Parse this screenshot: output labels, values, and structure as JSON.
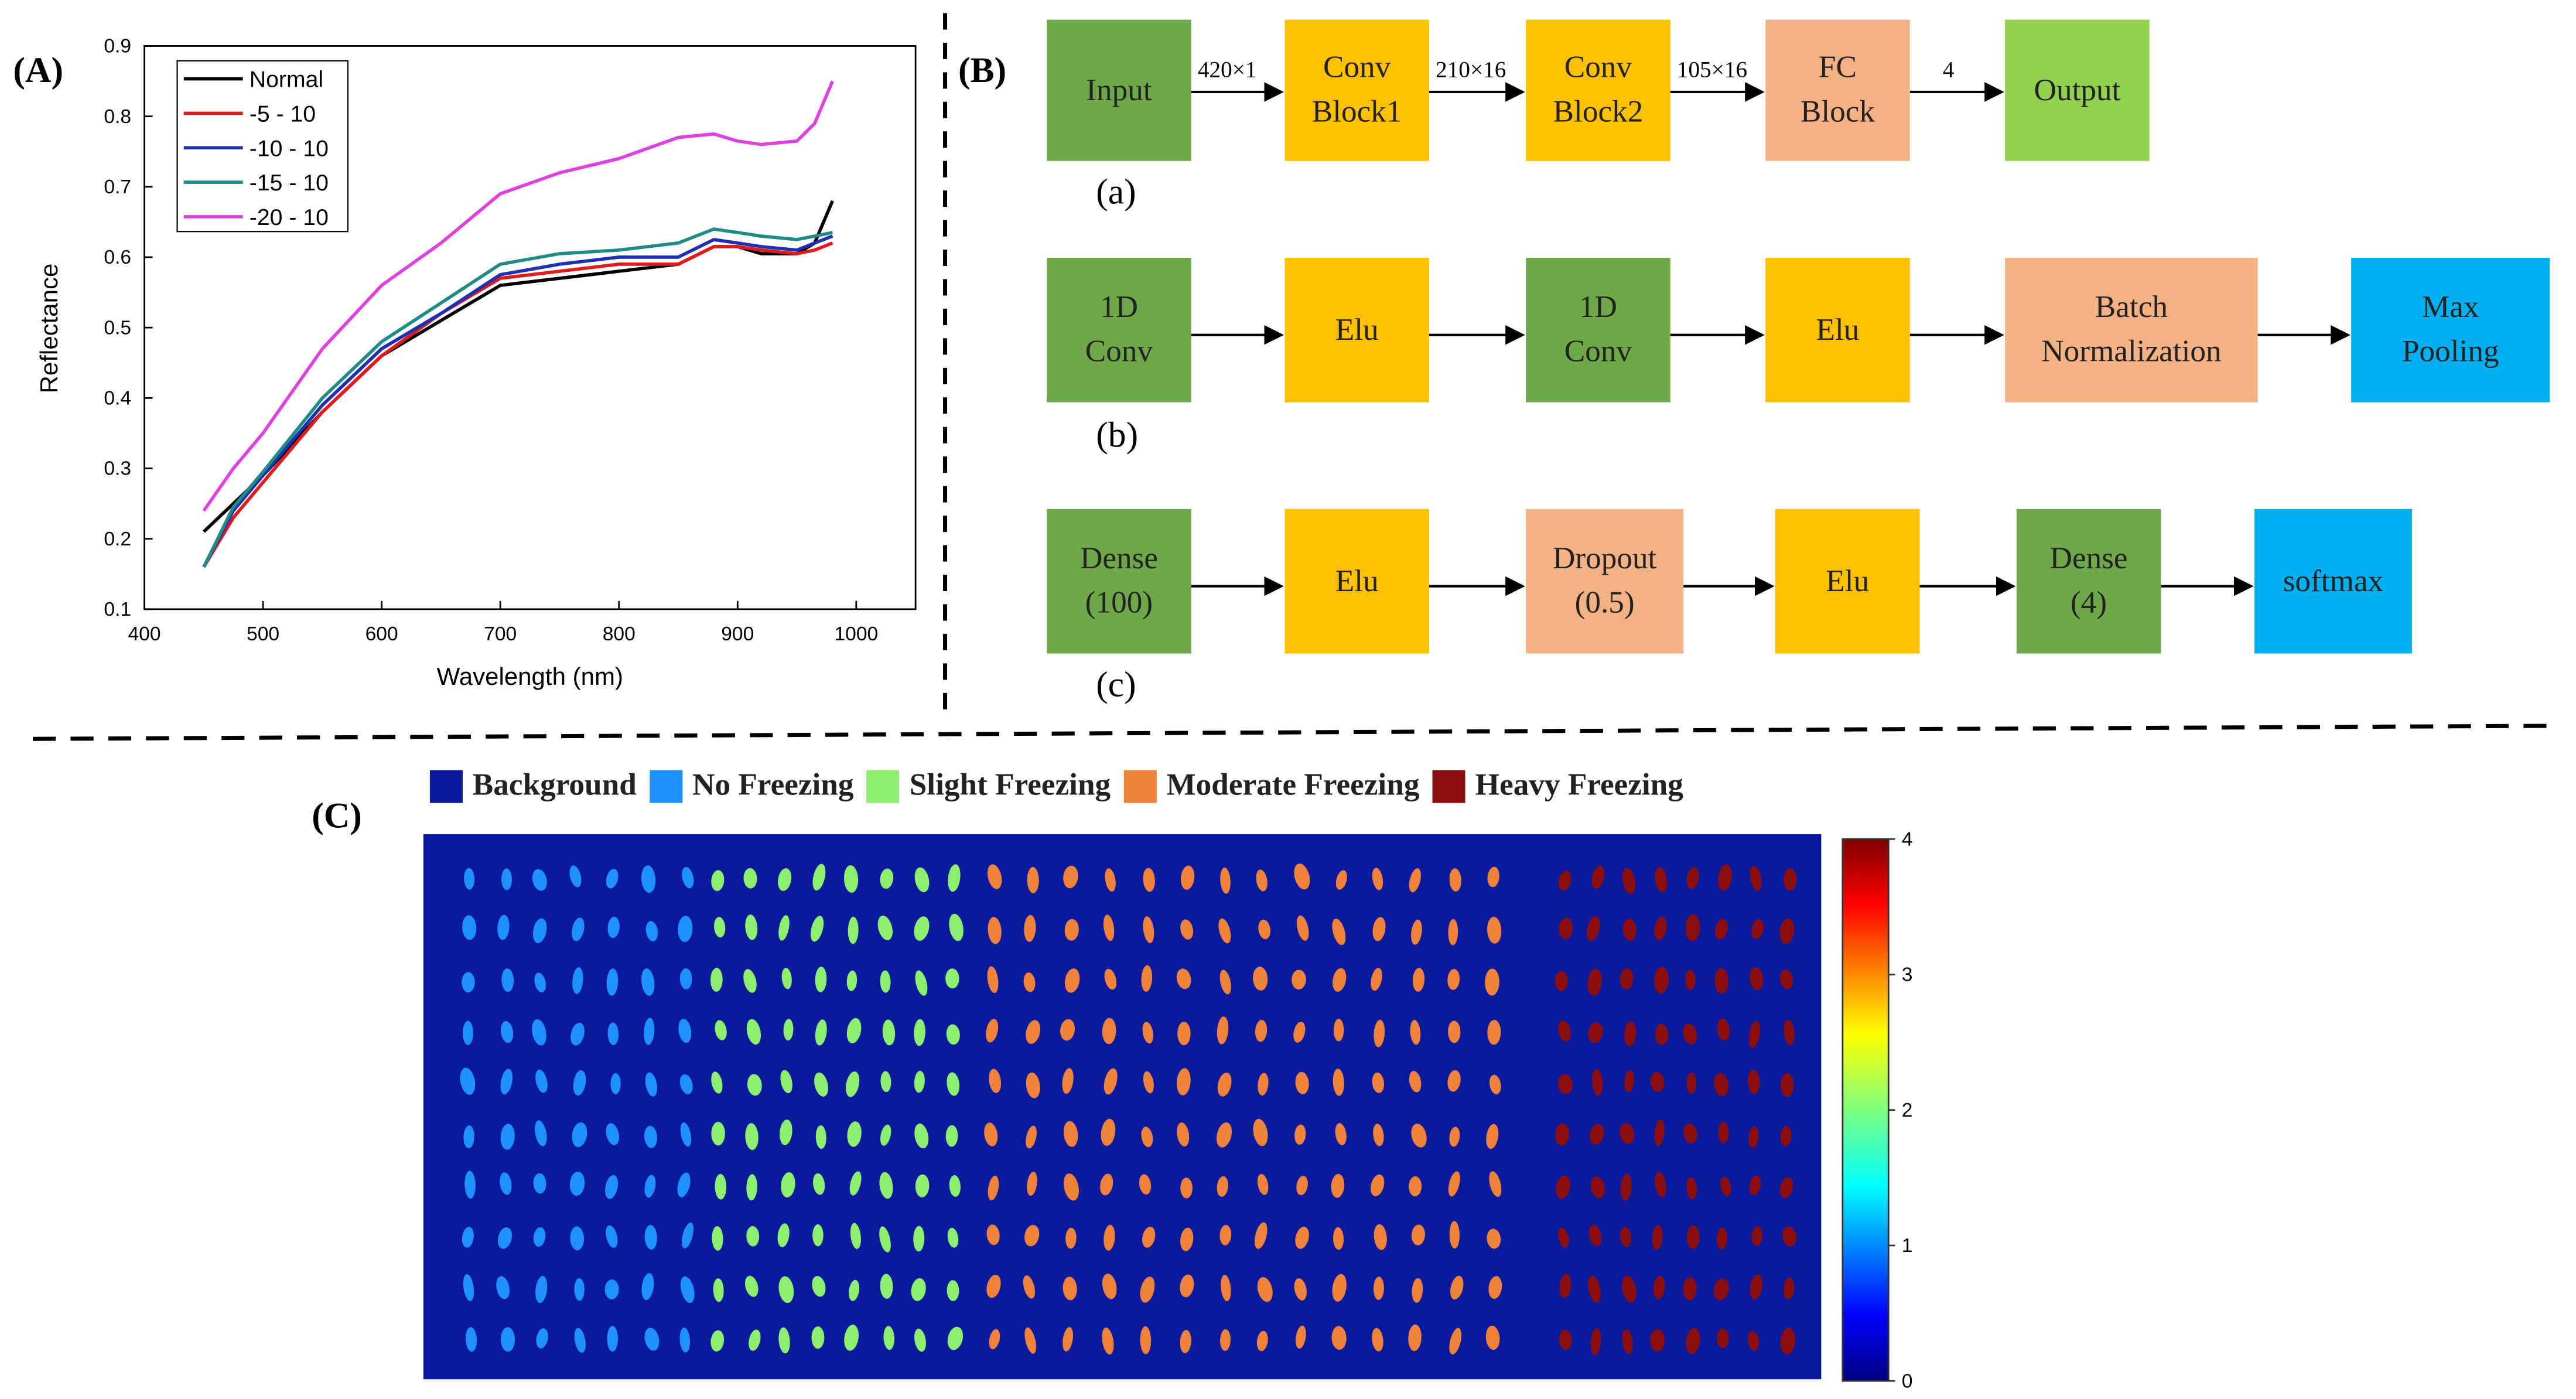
{
  "panels": {
    "a_label": "(A)",
    "b_label": "(B)",
    "c_label": "(C)"
  },
  "chart_data": {
    "type": "line",
    "title": "",
    "xlabel": "Wavelength (nm)",
    "ylabel": "Reflectance",
    "xlim": [
      400,
      1050
    ],
    "ylim": [
      0.1,
      0.9
    ],
    "xticks": [
      400,
      500,
      600,
      700,
      800,
      900,
      1000
    ],
    "yticks": [
      0.1,
      0.2,
      0.3,
      0.4,
      0.5,
      0.6,
      0.7,
      0.8,
      0.9
    ],
    "x": [
      450,
      475,
      500,
      550,
      600,
      650,
      700,
      750,
      800,
      850,
      880,
      900,
      920,
      950,
      965,
      980
    ],
    "series": [
      {
        "name": "Normal",
        "color": "#000000",
        "values": [
          0.21,
          0.25,
          0.29,
          0.38,
          0.46,
          0.51,
          0.56,
          0.57,
          0.58,
          0.59,
          0.615,
          0.615,
          0.605,
          0.605,
          0.62,
          0.68
        ]
      },
      {
        "name": "-5 - 10",
        "color": "#e31a1c",
        "values": [
          0.16,
          0.23,
          0.28,
          0.38,
          0.46,
          0.52,
          0.57,
          0.58,
          0.59,
          0.59,
          0.615,
          0.615,
          0.61,
          0.605,
          0.61,
          0.62
        ]
      },
      {
        "name": "-10 - 10",
        "color": "#1f2fb4",
        "values": [
          0.16,
          0.24,
          0.29,
          0.39,
          0.47,
          0.52,
          0.575,
          0.59,
          0.6,
          0.6,
          0.625,
          0.62,
          0.615,
          0.61,
          0.62,
          0.63
        ]
      },
      {
        "name": "-15 - 10",
        "color": "#1f8a86",
        "values": [
          0.16,
          0.245,
          0.295,
          0.4,
          0.48,
          0.535,
          0.59,
          0.605,
          0.61,
          0.62,
          0.64,
          0.635,
          0.63,
          0.625,
          0.63,
          0.635
        ]
      },
      {
        "name": "-20 - 10",
        "color": "#e040e0",
        "values": [
          0.24,
          0.3,
          0.35,
          0.47,
          0.56,
          0.62,
          0.69,
          0.72,
          0.74,
          0.77,
          0.775,
          0.765,
          0.76,
          0.765,
          0.79,
          0.85
        ]
      }
    ],
    "legend": "top-left"
  },
  "diagram_a": {
    "boxes": [
      "Input",
      "Conv\nBlock1",
      "Conv\nBlock2",
      "FC\nBlock",
      "Output"
    ],
    "arrows": [
      "420×1",
      "210×16",
      "105×16",
      "4"
    ],
    "sublabel": "(a)"
  },
  "diagram_b": {
    "boxes": [
      "1D\nConv",
      "Elu",
      "1D\nConv",
      "Elu",
      "Batch\nNormalization",
      "Max\nPooling"
    ],
    "sublabel": "(b)"
  },
  "diagram_c": {
    "boxes": [
      "Dense\n(100)",
      "Elu",
      "Dropout\n(0.5)",
      "Elu",
      "Dense\n(4)",
      "softmax"
    ],
    "sublabel": "(c)"
  },
  "colors": {
    "green_dark": "#6fa848",
    "green_light": "#92d050",
    "yellow": "#ffc000",
    "salmon": "#f4b183",
    "cyan": "#00b0f0",
    "map_bg": "#0a1a9c",
    "class_none": "#1e90ff",
    "class_slight": "#8cf06e",
    "class_moderate": "#f0823c",
    "class_heavy": "#8c0f0f"
  },
  "classmap": {
    "legend": [
      "Background",
      "No Freezing",
      "Slight Freezing",
      "Moderate Freezing",
      "Heavy Freezing"
    ],
    "colorbar_ticks": [
      "0",
      "1",
      "2",
      "3",
      "4"
    ]
  }
}
